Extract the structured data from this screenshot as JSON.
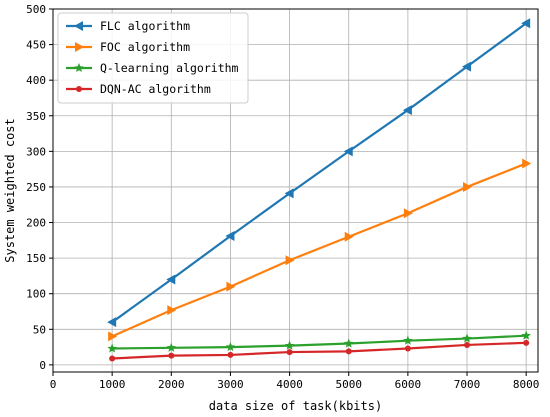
{
  "chart_data": {
    "type": "line",
    "title": "",
    "xlabel": "data size of task(kbits)",
    "ylabel": "System weighted cost",
    "xlim": [
      0,
      8200
    ],
    "ylim": [
      -10,
      500
    ],
    "xticks": [
      0,
      1000,
      2000,
      3000,
      4000,
      5000,
      6000,
      7000,
      8000
    ],
    "yticks": [
      0,
      50,
      100,
      150,
      200,
      250,
      300,
      350,
      400,
      450,
      500
    ],
    "grid": true,
    "legend_position": "top-left",
    "x": [
      1000,
      2000,
      3000,
      4000,
      5000,
      6000,
      7000,
      8000
    ],
    "series": [
      {
        "name": "FLC algorithm",
        "color": "#1f77b4",
        "marker": "triangle-left",
        "values": [
          60,
          120,
          181,
          241,
          300,
          358,
          419,
          480
        ]
      },
      {
        "name": "FOC algorithm",
        "color": "#ff7f0e",
        "marker": "triangle-right",
        "values": [
          40,
          77,
          110,
          147,
          180,
          213,
          250,
          283
        ]
      },
      {
        "name": "Q-learning algorithm",
        "color": "#2ca02c",
        "marker": "star",
        "values": [
          23,
          24,
          25,
          27,
          30,
          34,
          37,
          41
        ]
      },
      {
        "name": "DQN-AC algorithm",
        "color": "#d62728",
        "marker": "circle",
        "values": [
          9,
          13,
          14,
          18,
          19,
          23,
          28,
          31
        ]
      }
    ]
  }
}
